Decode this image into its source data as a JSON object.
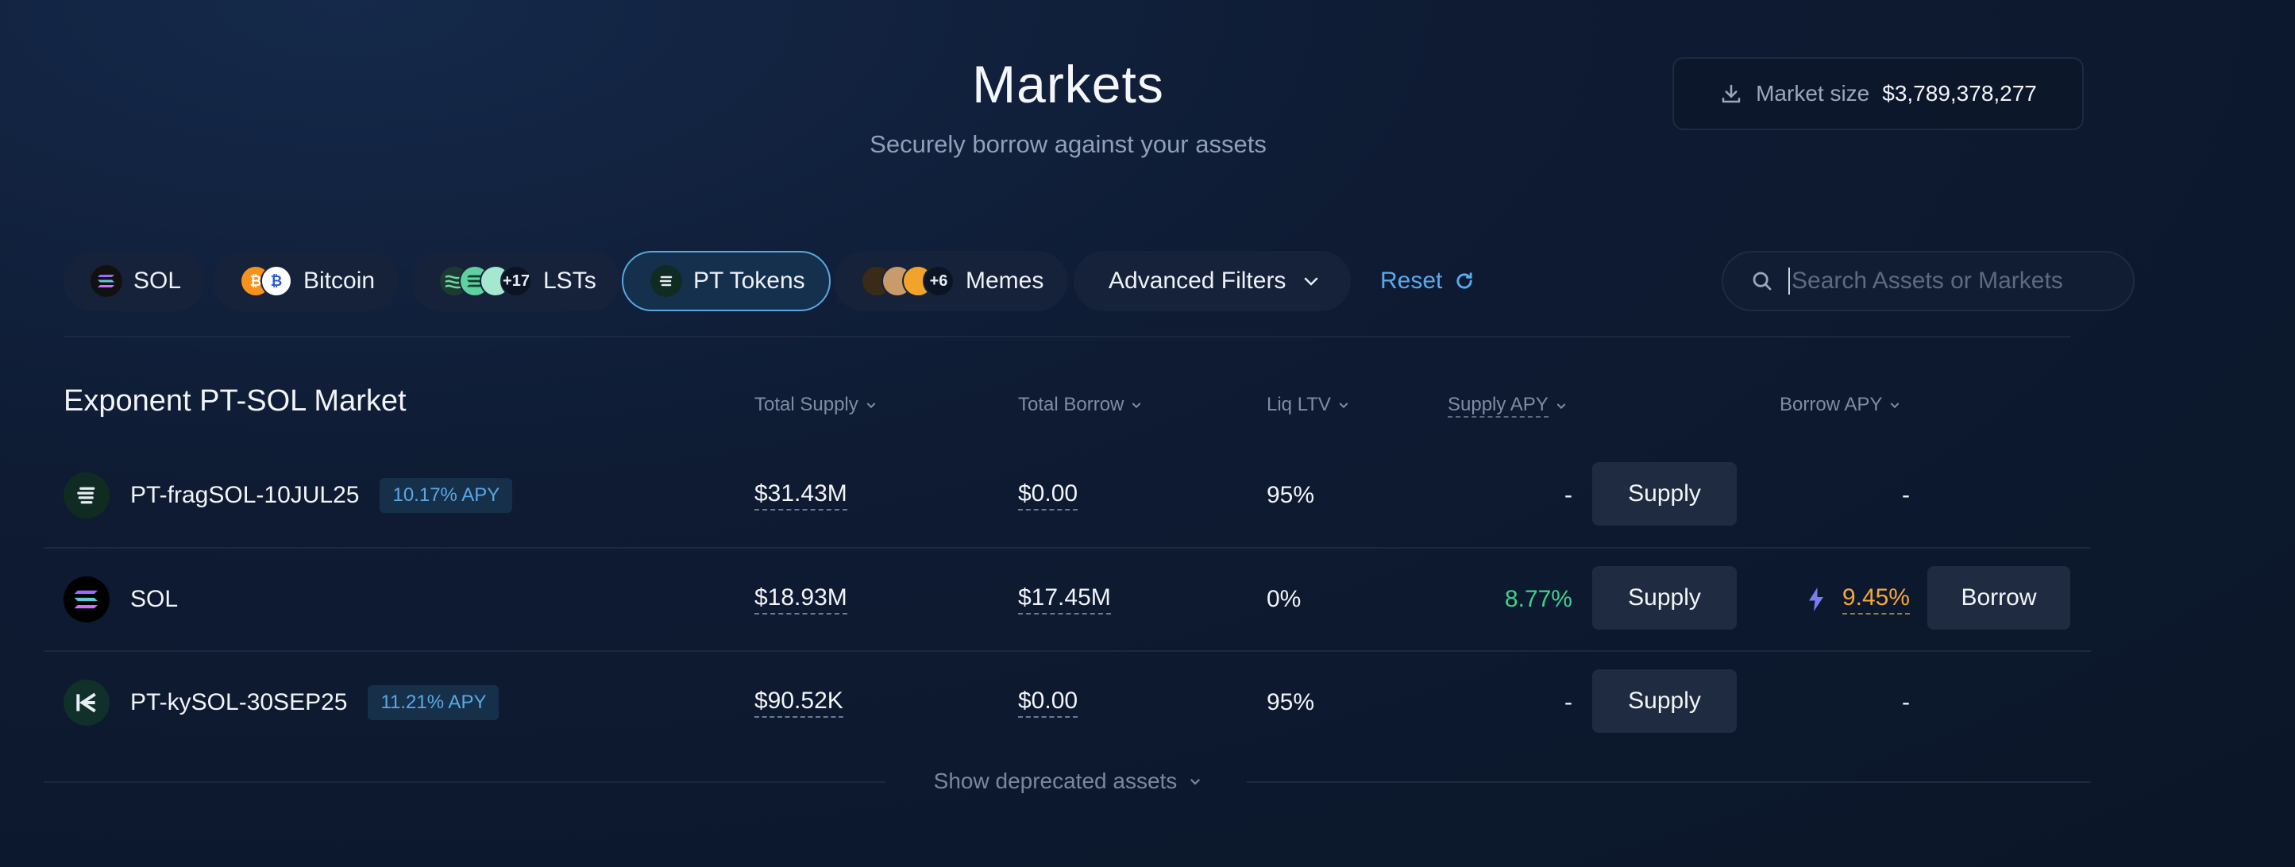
{
  "header": {
    "title": "Markets",
    "subtitle": "Securely borrow against your assets",
    "market_size_label": "Market size",
    "market_size_value": "$3,789,378,277"
  },
  "filters": {
    "chips": [
      {
        "label": "SOL"
      },
      {
        "label": "Bitcoin"
      },
      {
        "label": "LSTs",
        "count": "+17"
      },
      {
        "label": "PT Tokens",
        "active": true
      },
      {
        "label": "Memes",
        "count": "+6"
      },
      {
        "label": "Advanced Filters"
      }
    ],
    "reset_label": "Reset",
    "search_placeholder": "Search Assets or Markets"
  },
  "table": {
    "market_title": "Exponent PT-SOL Market",
    "columns": {
      "total_supply": "Total Supply",
      "total_borrow": "Total Borrow",
      "liq_ltv": "Liq LTV",
      "supply_apy": "Supply APY",
      "borrow_apy": "Borrow APY"
    },
    "rows": [
      {
        "name": "PT-fragSOL-10JUL25",
        "apy_badge": "10.17% APY",
        "total_supply": "$31.43M",
        "total_borrow": "$0.00",
        "liq_ltv": "95%",
        "supply_apy": "-",
        "supply_btn": "Supply",
        "borrow_apy": "-"
      },
      {
        "name": "SOL",
        "apy_badge": "",
        "total_supply": "$18.93M",
        "total_borrow": "$17.45M",
        "liq_ltv": "0%",
        "supply_apy": "8.77%",
        "supply_btn": "Supply",
        "borrow_apy": "9.45%",
        "borrow_btn": "Borrow"
      },
      {
        "name": "PT-kySOL-30SEP25",
        "apy_badge": "11.21% APY",
        "total_supply": "$90.52K",
        "total_borrow": "$0.00",
        "liq_ltv": "95%",
        "supply_apy": "-",
        "supply_btn": "Supply",
        "borrow_apy": "-"
      }
    ],
    "show_deprecated": "Show deprecated assets"
  },
  "colors": {
    "accent_blue": "#5aa9ec",
    "positive_green": "#3fd08f",
    "borrow_orange": "#f5a83a"
  }
}
